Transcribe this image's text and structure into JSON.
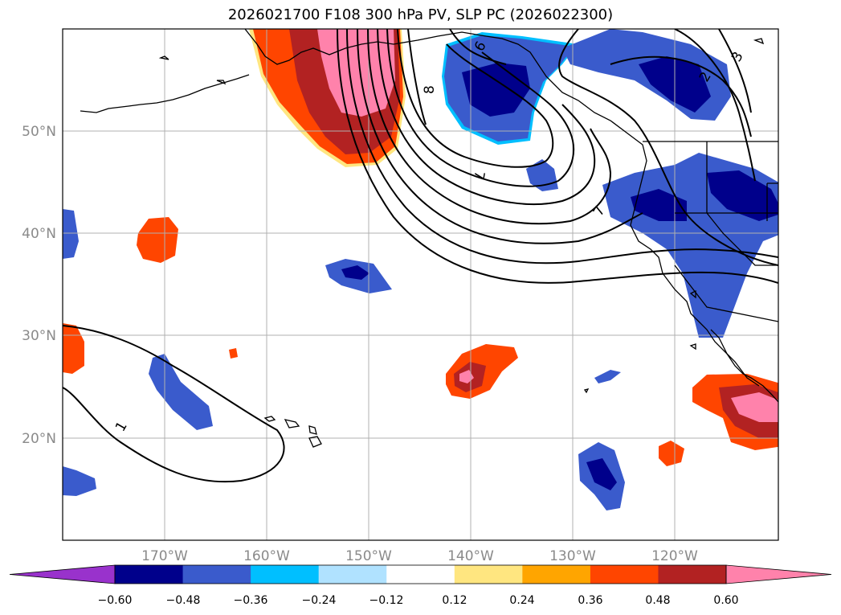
{
  "title": "2026021700 F108 300 hPa PV, SLP PC (2026022300)",
  "map": {
    "lon_labels": [
      "170°W",
      "160°W",
      "150°W",
      "140°W",
      "130°W",
      "120°W"
    ],
    "lat_labels": [
      "50°N",
      "40°N",
      "30°N",
      "20°N"
    ],
    "contour_labels": [
      "1",
      "2",
      "3",
      "6",
      "7",
      "7",
      "8"
    ]
  },
  "colorbar": {
    "tick_labels": [
      "−0.60",
      "−0.48",
      "−0.36",
      "−0.24",
      "−0.12",
      "0.12",
      "0.24",
      "0.36",
      "0.48",
      "0.60"
    ],
    "colors": [
      "#9932cc",
      "#00008b",
      "#3a5bcc",
      "#00bfff",
      "#b0e2ff",
      "#ffffff",
      "#ffe680",
      "#ffa500",
      "#ff4500",
      "#b22222",
      "#ff82ab"
    ]
  }
}
